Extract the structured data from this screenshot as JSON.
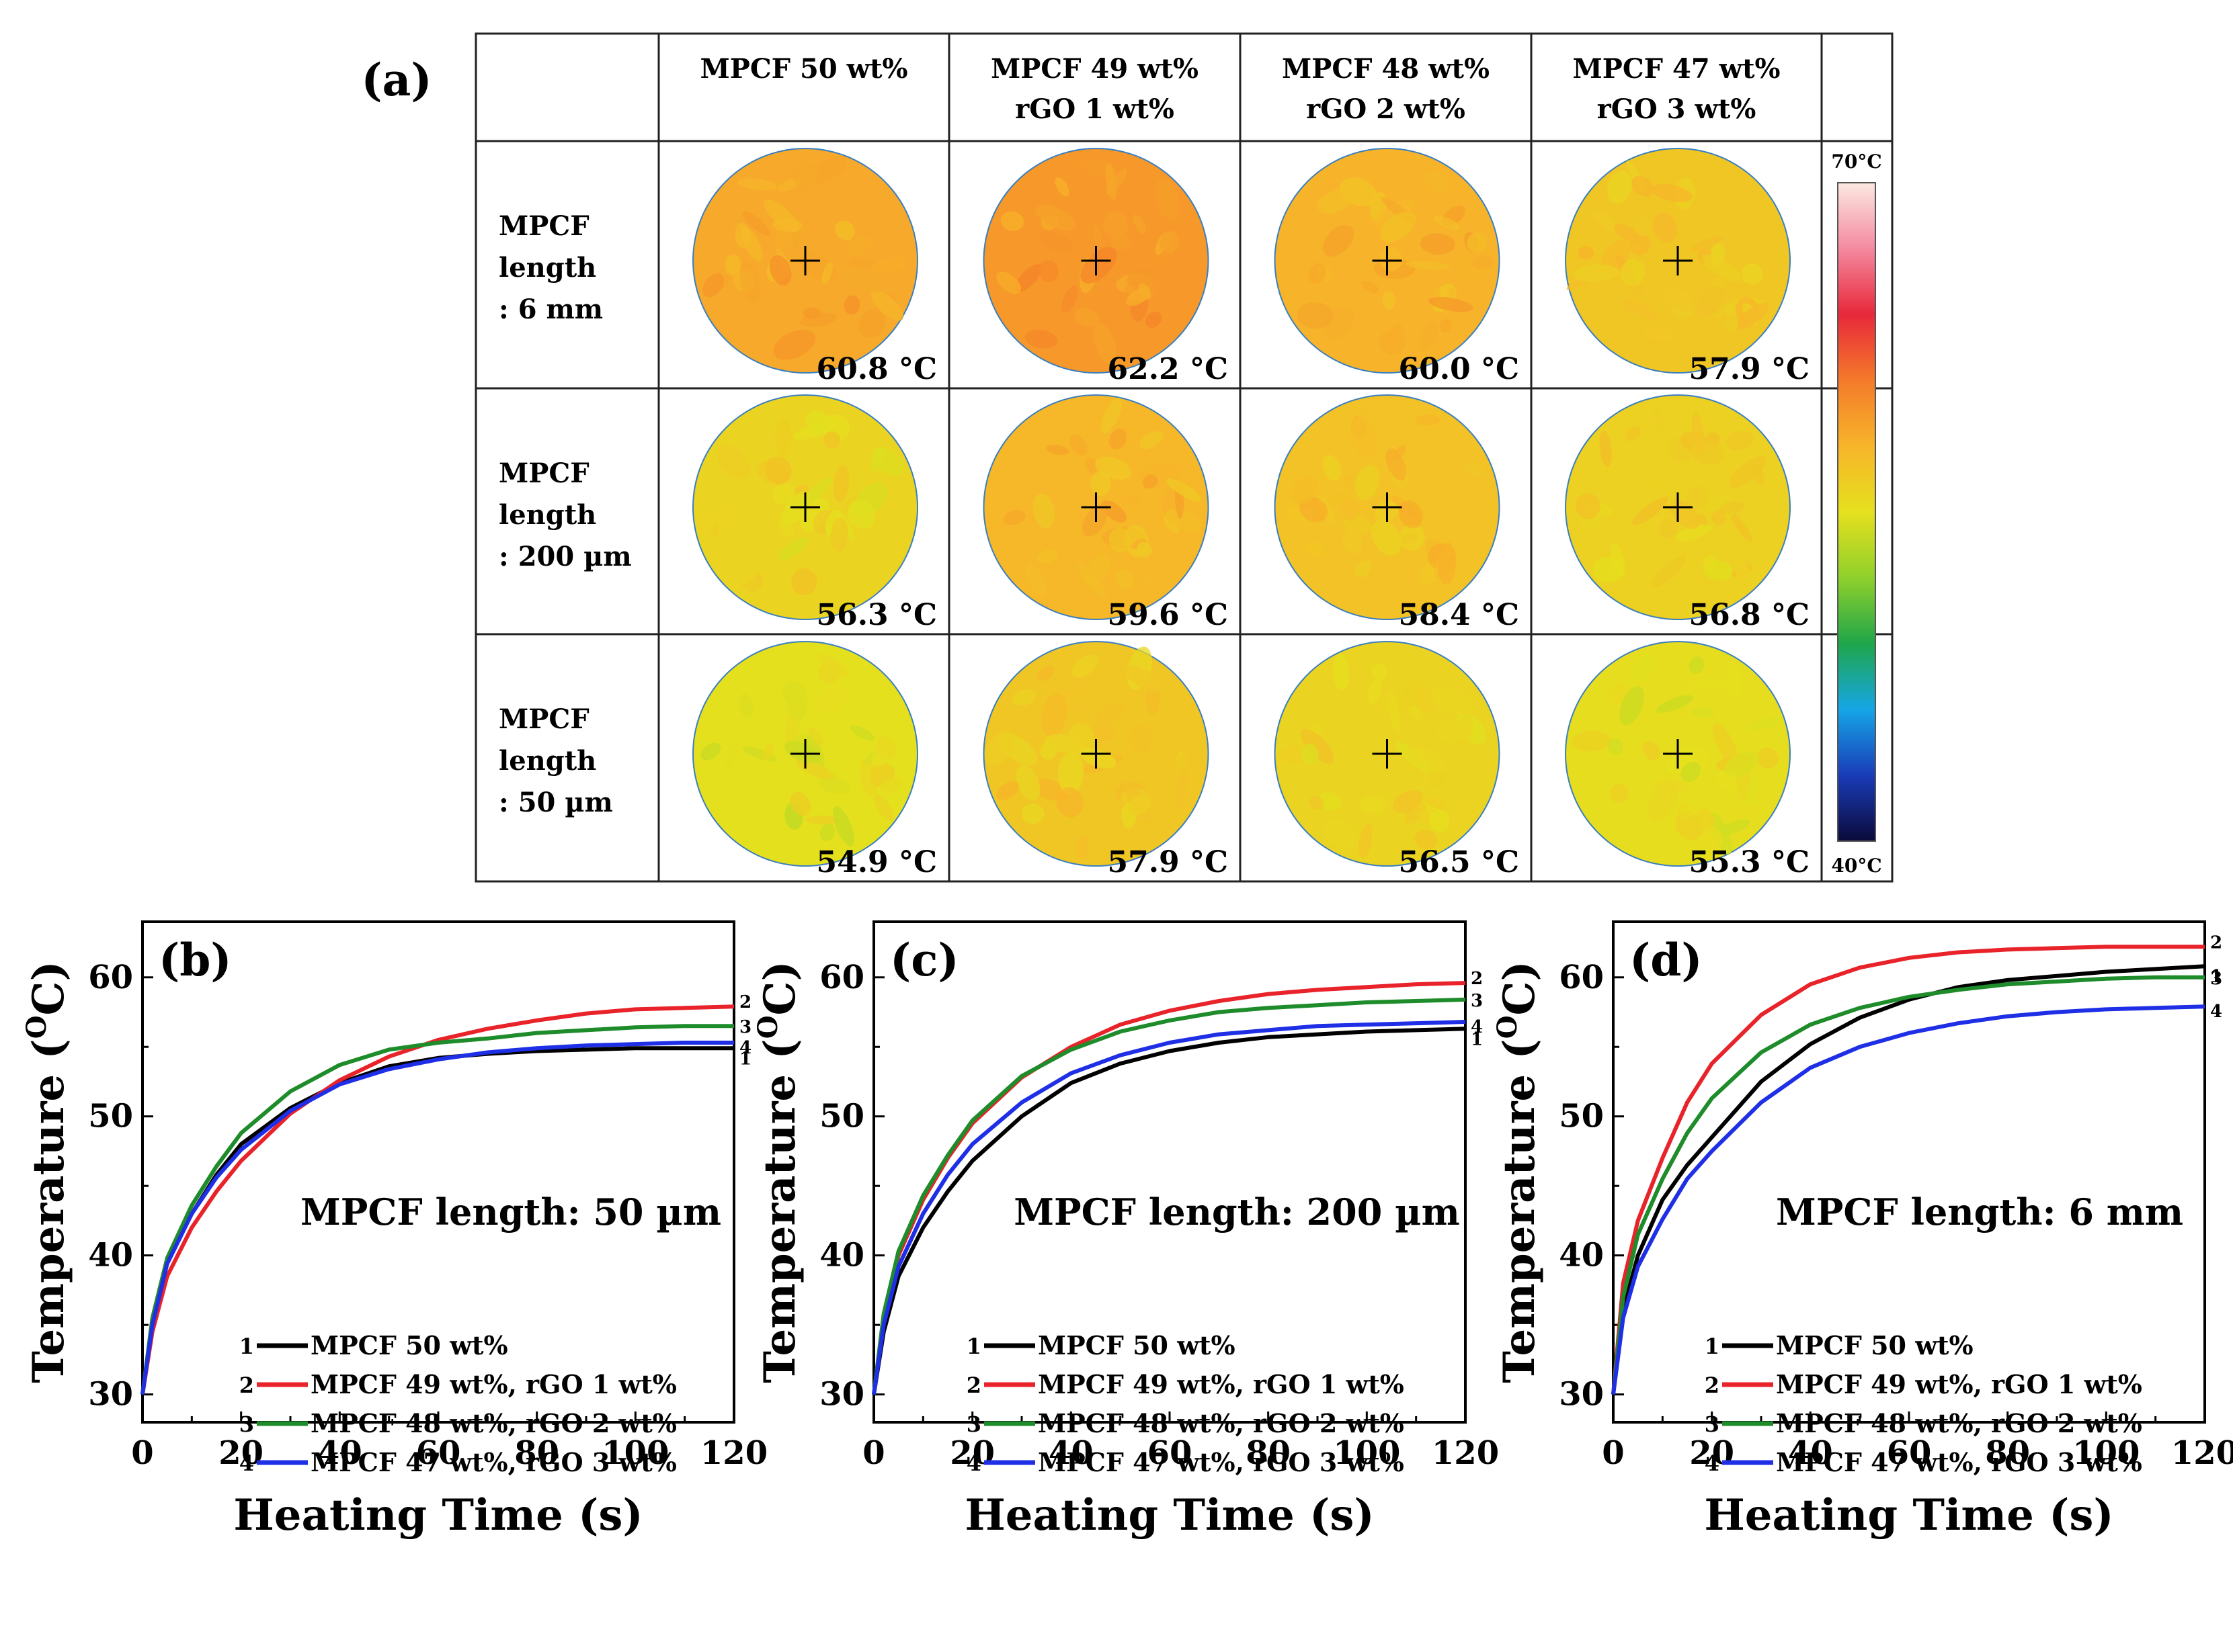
{
  "panel_a": {
    "label": "(a)",
    "column_headers": [
      [
        "MPCF 50 wt%"
      ],
      [
        "MPCF 49 wt%",
        "rGO    1 wt%"
      ],
      [
        "MPCF 48 wt%",
        "rGO    2 wt%"
      ],
      [
        "MPCF 47 wt%",
        "rGO    3 wt%"
      ]
    ],
    "row_headers": [
      [
        "MPCF",
        "length",
        ": 6 mm"
      ],
      [
        "MPCF",
        "length",
        ": 200 µm"
      ],
      [
        "MPCF",
        "length",
        ": 50 µm"
      ]
    ],
    "temperatures": [
      [
        "60.8 °C",
        "62.2 °C",
        "60.0 °C",
        "57.9 °C"
      ],
      [
        "56.3 °C",
        "59.6 °C",
        "58.4 °C",
        "56.8 °C"
      ],
      [
        "54.9 °C",
        "57.9 °C",
        "56.5 °C",
        "55.3 °C"
      ]
    ],
    "colorbar": {
      "max_label": "70°C",
      "min_label": "40°C"
    }
  },
  "colors": {
    "series1": "#000000",
    "series2": "#e8232a",
    "series3": "#1e8c2a",
    "series4": "#1f2fe6",
    "thermal_stops": [
      "#0a0a3a",
      "#1a3cb8",
      "#16a6e6",
      "#1fa64a",
      "#8fd02c",
      "#e6e01e",
      "#f7b52a",
      "#f47a2a",
      "#e8283a",
      "#f48aa0",
      "#fbe8e0"
    ]
  },
  "chart_data": [
    {
      "panel": "(b)",
      "type": "line",
      "annotation": "MPCF length: 50 µm",
      "xlabel": "Heating Time (s)",
      "ylabel": "Temperature (",
      "ylabel_sup": "O",
      "ylabel_tail": "C)",
      "xlim": [
        0,
        120
      ],
      "ylim": [
        28,
        64
      ],
      "xticks": [
        0,
        20,
        40,
        60,
        80,
        100,
        120
      ],
      "yticks": [
        30,
        40,
        50,
        60
      ],
      "x": [
        0,
        2,
        5,
        10,
        15,
        20,
        30,
        40,
        50,
        60,
        70,
        80,
        90,
        100,
        110,
        120
      ],
      "series": [
        {
          "id": "1",
          "name": "MPCF 50 wt%",
          "values": [
            30.0,
            35.0,
            39.5,
            43.0,
            45.8,
            48.0,
            50.6,
            52.4,
            53.6,
            54.2,
            54.5,
            54.7,
            54.8,
            54.9,
            54.9,
            54.9
          ]
        },
        {
          "id": "2",
          "name": "MPCF 49 wt%, rGO 1 wt%",
          "values": [
            30.0,
            34.5,
            38.5,
            42.0,
            44.6,
            46.8,
            50.2,
            52.6,
            54.3,
            55.5,
            56.3,
            56.9,
            57.4,
            57.7,
            57.8,
            57.9
          ]
        },
        {
          "id": "3",
          "name": "MPCF 48 wt%, rGO 2 wt%",
          "values": [
            30.0,
            35.5,
            39.8,
            43.6,
            46.4,
            48.8,
            51.8,
            53.7,
            54.8,
            55.3,
            55.6,
            56.0,
            56.2,
            56.4,
            56.5,
            56.5
          ]
        },
        {
          "id": "4",
          "name": "MPCF 47 wt%, rGO 3 wt%",
          "values": [
            30.0,
            35.0,
            39.4,
            43.0,
            45.6,
            47.6,
            50.4,
            52.3,
            53.4,
            54.1,
            54.6,
            54.9,
            55.1,
            55.2,
            55.3,
            55.3
          ]
        }
      ]
    },
    {
      "panel": "(c)",
      "type": "line",
      "annotation": "MPCF length: 200 µm",
      "xlabel": "Heating Time (s)",
      "ylabel": "Temperature (",
      "ylabel_sup": "O",
      "ylabel_tail": "C)",
      "xlim": [
        0,
        120
      ],
      "ylim": [
        28,
        64
      ],
      "xticks": [
        0,
        20,
        40,
        60,
        80,
        100,
        120
      ],
      "yticks": [
        30,
        40,
        50,
        60
      ],
      "x": [
        0,
        2,
        5,
        10,
        15,
        20,
        30,
        40,
        50,
        60,
        70,
        80,
        90,
        100,
        110,
        120
      ],
      "series": [
        {
          "id": "1",
          "name": "MPCF 50 wt%",
          "values": [
            30.0,
            34.5,
            38.5,
            42.0,
            44.6,
            46.8,
            50.0,
            52.4,
            53.8,
            54.7,
            55.3,
            55.7,
            55.9,
            56.1,
            56.2,
            56.3
          ]
        },
        {
          "id": "2",
          "name": "MPCF 49 wt%, rGO 1 wt%",
          "values": [
            30.0,
            35.5,
            40.0,
            44.0,
            47.0,
            49.5,
            52.8,
            55.0,
            56.6,
            57.6,
            58.3,
            58.8,
            59.1,
            59.3,
            59.5,
            59.6
          ]
        },
        {
          "id": "3",
          "name": "MPCF 48 wt%, rGO 2 wt%",
          "values": [
            30.0,
            35.8,
            40.3,
            44.3,
            47.2,
            49.7,
            52.9,
            54.8,
            56.1,
            56.9,
            57.5,
            57.8,
            58.0,
            58.2,
            58.3,
            58.4
          ]
        },
        {
          "id": "4",
          "name": "MPCF 47 wt%, rGO 3 wt%",
          "values": [
            30.0,
            35.0,
            39.2,
            43.0,
            45.8,
            48.0,
            51.0,
            53.1,
            54.4,
            55.3,
            55.9,
            56.2,
            56.5,
            56.6,
            56.7,
            56.8
          ]
        }
      ]
    },
    {
      "panel": "(d)",
      "type": "line",
      "annotation": "MPCF length: 6 mm",
      "xlabel": "Heating Time (s)",
      "ylabel": "Temperature (",
      "ylabel_sup": "O",
      "ylabel_tail": "C)",
      "xlim": [
        0,
        120
      ],
      "ylim": [
        28,
        64
      ],
      "xticks": [
        0,
        20,
        40,
        60,
        80,
        100,
        120
      ],
      "yticks": [
        30,
        40,
        50,
        60
      ],
      "x": [
        0,
        2,
        5,
        10,
        15,
        20,
        30,
        40,
        50,
        60,
        70,
        80,
        90,
        100,
        110,
        120
      ],
      "series": [
        {
          "id": "1",
          "name": "MPCF 50 wt%",
          "values": [
            30.0,
            36.0,
            40.0,
            44.0,
            46.5,
            48.5,
            52.5,
            55.2,
            57.1,
            58.4,
            59.3,
            59.8,
            60.1,
            60.4,
            60.6,
            60.8
          ]
        },
        {
          "id": "2",
          "name": "MPCF 49 wt%, rGO 1 wt%",
          "values": [
            30.0,
            38.0,
            42.5,
            47.0,
            51.0,
            53.8,
            57.3,
            59.5,
            60.7,
            61.4,
            61.8,
            62.0,
            62.1,
            62.2,
            62.2,
            62.2
          ]
        },
        {
          "id": "3",
          "name": "MPCF 48 wt%, rGO 2 wt%",
          "values": [
            30.0,
            37.0,
            41.5,
            45.5,
            48.8,
            51.3,
            54.6,
            56.6,
            57.8,
            58.6,
            59.1,
            59.5,
            59.7,
            59.9,
            60.0,
            60.0
          ]
        },
        {
          "id": "4",
          "name": "MPCF 47 wt%, rGO 3 wt%",
          "values": [
            30.0,
            35.5,
            39.2,
            42.6,
            45.5,
            47.5,
            51.0,
            53.5,
            55.0,
            56.0,
            56.7,
            57.2,
            57.5,
            57.7,
            57.8,
            57.9
          ]
        }
      ]
    }
  ]
}
